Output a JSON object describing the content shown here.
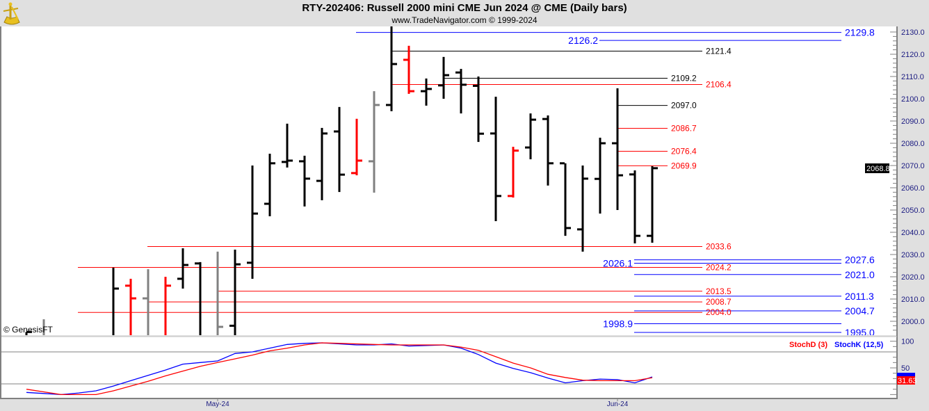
{
  "header": {
    "title": "RTY-202406:  Russell 2000 mini CME Jun 2024 @ CME  (Daily bars)",
    "subtitle": "www.TradeNavigator.com © 1999-2024",
    "copyright": "© GenesisFT"
  },
  "colors": {
    "up_bar": "#000000",
    "down_bar": "#ff0000",
    "neutral_bar": "#808080",
    "stoch_k": "#0000ff",
    "stoch_d": "#ff0000",
    "level_blue": "#0000ff",
    "level_red": "#ff0000",
    "level_black": "#000000"
  },
  "chart_data": [
    {
      "type": "ohlc",
      "title": "RTY-202406:  Russell 2000 mini CME Jun 2024 @ CME  (Daily bars)",
      "ylim": [
        1995,
        2132
      ],
      "y_ticks": [
        "2130.0",
        "2120.0",
        "2110.0",
        "2100.0",
        "2090.0",
        "2080.0",
        "2070.0",
        "2060.0",
        "2050.0",
        "2040.0",
        "2030.0",
        "2020.0",
        "2010.0",
        "2000.0"
      ],
      "x_tick_labels": [
        {
          "label": "May-24",
          "bar": 11
        },
        {
          "label": "Jun-24",
          "bar": 34
        }
      ],
      "last_price": "2068.8",
      "bars": [
        {
          "o": null,
          "h": null,
          "l": null,
          "c": 1995.2,
          "color": "black"
        },
        {
          "o": null,
          "h": 2000.9,
          "l": null,
          "c": null,
          "color": "gray"
        },
        null,
        null,
        null,
        {
          "o": null,
          "h": 2024.1,
          "l": null,
          "c": 2014.7,
          "color": "black"
        },
        {
          "o": 2016.0,
          "h": 2019.1,
          "l": null,
          "c": 2010.3,
          "color": "red"
        },
        {
          "o": 2010.3,
          "h": 2023.4,
          "l": null,
          "c": null,
          "color": "gray"
        },
        {
          "o": null,
          "h": 2020.0,
          "l": null,
          "c": 2016.0,
          "color": "red"
        },
        {
          "o": 2019.1,
          "h": 2032.8,
          "l": 2014.7,
          "c": 2025.3,
          "color": "black"
        },
        {
          "o": 2026.0,
          "h": 2026.6,
          "l": null,
          "c": null,
          "color": "black"
        },
        {
          "o": null,
          "h": 2031.3,
          "l": null,
          "c": 1997.5,
          "color": "gray"
        },
        {
          "o": 1998.0,
          "h": 2032.2,
          "l": null,
          "c": 2025.6,
          "color": "black"
        },
        {
          "o": 2026.3,
          "h": 2070.0,
          "l": 2019.1,
          "c": 2048.4,
          "color": "black"
        },
        {
          "o": 2052.8,
          "h": 2075.3,
          "l": 2047.2,
          "c": 2071.0,
          "color": "black"
        },
        {
          "o": 2071.6,
          "h": 2088.8,
          "l": 2069.1,
          "c": 2072.2,
          "color": "black"
        },
        {
          "o": 2071.9,
          "h": 2074.4,
          "l": 2051.6,
          "c": 2064.1,
          "color": "black"
        },
        {
          "o": 2063.1,
          "h": 2086.9,
          "l": 2054.4,
          "c": 2084.4,
          "color": "black"
        },
        {
          "o": 2085.3,
          "h": 2096.3,
          "l": 2058.1,
          "c": 2065.9,
          "color": "black"
        },
        {
          "o": 2066.6,
          "h": 2091.0,
          "l": 2065.6,
          "c": 2072.2,
          "color": "red"
        },
        {
          "o": 2071.9,
          "h": 2103.4,
          "l": 2057.8,
          "c": 2097.2,
          "color": "gray"
        },
        {
          "o": 2097.2,
          "h": 2132.5,
          "l": 2094.4,
          "c": 2115.6,
          "color": "black"
        },
        {
          "o": 2117.5,
          "h": 2123.8,
          "l": 2102.2,
          "c": 2103.4,
          "color": "red"
        },
        {
          "o": 2103.4,
          "h": 2109.1,
          "l": 2096.9,
          "c": 2104.4,
          "color": "black"
        },
        {
          "o": 2106.0,
          "h": 2118.8,
          "l": 2100.0,
          "c": 2110.6,
          "color": "black"
        },
        {
          "o": 2111.8,
          "h": 2113.4,
          "l": 2093.4,
          "c": 2106.3,
          "color": "black"
        },
        {
          "o": 2105.8,
          "h": 2110.0,
          "l": 2080.6,
          "c": 2084.3,
          "color": "black"
        },
        {
          "o": 2084.4,
          "h": 2100.9,
          "l": 2045.0,
          "c": 2056.3,
          "color": "black"
        },
        {
          "o": 2056.3,
          "h": 2078.4,
          "l": 2055.6,
          "c": 2076.7,
          "color": "red"
        },
        {
          "o": 2078.1,
          "h": 2093.4,
          "l": 2072.8,
          "c": 2090.6,
          "color": "black"
        },
        {
          "o": 2090.9,
          "h": 2092.5,
          "l": 2061.0,
          "c": 2071.0,
          "color": "black"
        },
        {
          "o": 2071.0,
          "h": 2071.0,
          "l": 2038.4,
          "c": 2041.9,
          "color": "black"
        },
        {
          "o": 2041.3,
          "h": 2070.0,
          "l": 2031.3,
          "c": 2064.1,
          "color": "black"
        },
        {
          "o": 2064.0,
          "h": 2082.5,
          "l": 2048.4,
          "c": 2080.0,
          "color": "black"
        },
        {
          "o": 2080.0,
          "h": 2104.7,
          "l": 2050.0,
          "c": 2065.6,
          "color": "black"
        },
        {
          "o": 2066.0,
          "h": 2067.8,
          "l": 2035.0,
          "c": 2038.4,
          "color": "black"
        },
        {
          "o": 2038.4,
          "h": 2069.7,
          "l": 2035.3,
          "c": 2068.8,
          "color": "black"
        }
      ],
      "levels": [
        {
          "level": 2129.8,
          "label": "2129.8",
          "color": "blue"
        },
        {
          "level": 2126.2,
          "label": "2126.2",
          "color": "blue"
        },
        {
          "level": 2121.4,
          "label": "2121.4",
          "color": "black"
        },
        {
          "level": 2109.2,
          "label": "2109.2",
          "color": "black"
        },
        {
          "level": 2106.4,
          "label": "2106.4",
          "color": "red"
        },
        {
          "level": 2097.0,
          "label": "2097.0",
          "color": "black"
        },
        {
          "level": 2086.7,
          "label": "2086.7",
          "color": "red"
        },
        {
          "level": 2076.4,
          "label": "2076.4",
          "color": "red"
        },
        {
          "level": 2069.9,
          "label": "2069.9",
          "color": "red"
        },
        {
          "level": 2033.6,
          "label": "2033.6",
          "color": "red"
        },
        {
          "level": 2027.6,
          "label": "2027.6",
          "color": "blue"
        },
        {
          "level": 2026.1,
          "label": "2026.1",
          "color": "blue"
        },
        {
          "level": 2024.2,
          "label": "2024.2",
          "color": "red"
        },
        {
          "level": 2021.0,
          "label": "2021.0",
          "color": "blue"
        },
        {
          "level": 2013.5,
          "label": "2013.5",
          "color": "red"
        },
        {
          "level": 2011.3,
          "label": "2011.3",
          "color": "blue"
        },
        {
          "level": 2008.7,
          "label": "2008.7",
          "color": "red"
        },
        {
          "level": 2004.7,
          "label": "2004.7",
          "color": "blue"
        },
        {
          "level": 2004.0,
          "label": "2004.0",
          "color": "red"
        },
        {
          "level": 1998.9,
          "label": "1998.9",
          "color": "blue"
        },
        {
          "level": 1995.0,
          "label": "1995.0",
          "color": "blue"
        }
      ]
    },
    {
      "type": "line",
      "ylim": [
        0,
        100
      ],
      "y_ticks": [
        "100",
        "50"
      ],
      "reference_lines": [
        80,
        20
      ],
      "last_value": "31.63",
      "series": [
        {
          "name": "StochD (3)",
          "color": "#ff0000",
          "values": [
            10,
            5,
            0,
            0,
            0,
            7,
            16,
            25,
            35,
            44,
            53,
            60,
            67,
            74,
            82,
            87,
            93,
            97,
            96,
            95,
            94,
            93,
            93,
            93,
            93,
            89,
            83,
            71,
            59,
            50,
            38,
            32,
            27,
            26,
            26,
            26,
            31.63
          ]
        },
        {
          "name": "StochK (12,5)",
          "color": "#0000ff",
          "values": [
            4,
            2,
            0,
            3,
            7,
            16,
            26,
            36,
            46,
            57,
            60,
            63,
            77,
            80,
            87,
            94,
            96,
            97,
            95,
            93,
            93,
            95,
            91,
            92,
            93,
            87,
            75,
            59,
            49,
            41,
            31,
            22,
            26,
            29,
            28,
            22,
            33
          ]
        }
      ]
    }
  ]
}
